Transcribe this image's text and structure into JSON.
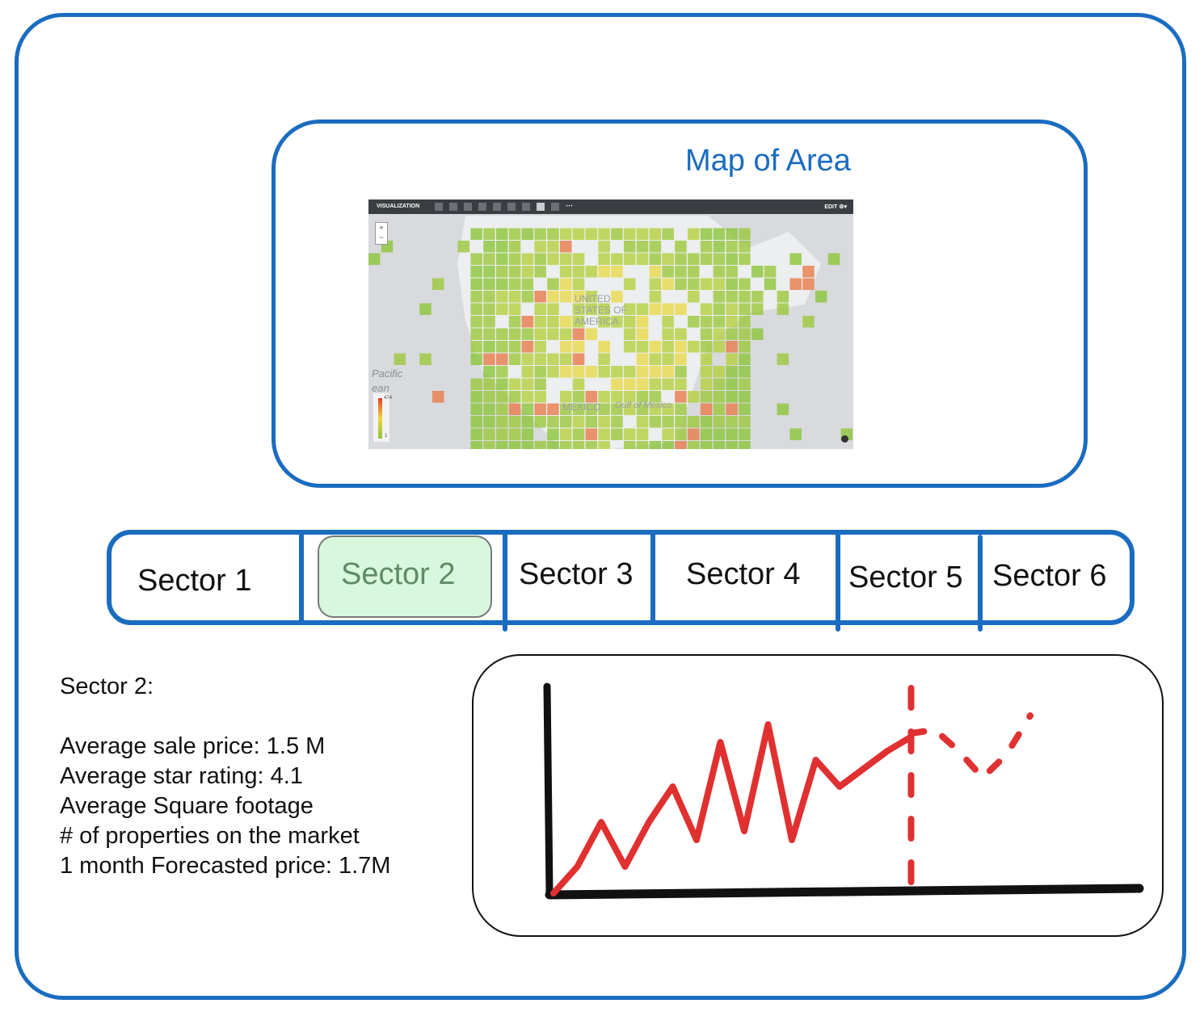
{
  "map": {
    "title": "Map of Area",
    "toolbar_label": "VISUALIZATION",
    "edit_label": "EDIT",
    "ocean_label_1": "Pacific",
    "ocean_label_2": "ean",
    "country_label": "UNITED STATES OF AMERICA",
    "mexico_label": "MEXICO",
    "gulf_label": "Gulf of Mexico",
    "legend_max": "474",
    "legend_min": "1"
  },
  "sectors": {
    "items": [
      "Sector 1",
      "Sector 2",
      "Sector 3",
      "Sector 4",
      "Sector 5",
      "Sector 6"
    ],
    "selected": "Sector 2"
  },
  "details": {
    "heading": "Sector 2:",
    "avg_price": "Average sale price: 1.5 M",
    "avg_rating": "Average star rating: 4.1",
    "avg_sqft": "Average Square footage",
    "num_props": "# of properties on the market",
    "forecast": "1 month Forecasted price: 1.7M"
  },
  "chart_data": {
    "type": "line",
    "title": "",
    "xlabel": "",
    "ylabel": "",
    "series": [
      {
        "style": "solid",
        "color": "#e03030",
        "x": [
          0,
          1,
          2,
          3,
          4,
          5,
          6,
          7,
          8,
          9,
          10,
          11,
          12,
          13,
          14,
          15
        ],
        "y": [
          0,
          15,
          40,
          15,
          40,
          60,
          30,
          85,
          35,
          95,
          30,
          75,
          60,
          70,
          80,
          88
        ]
      },
      {
        "style": "dashed",
        "color": "#e03030",
        "x": [
          15,
          16,
          17,
          18,
          19,
          20
        ],
        "y": [
          90,
          92,
          80,
          65,
          78,
          100
        ]
      }
    ],
    "forecast_divider_x": 15
  }
}
